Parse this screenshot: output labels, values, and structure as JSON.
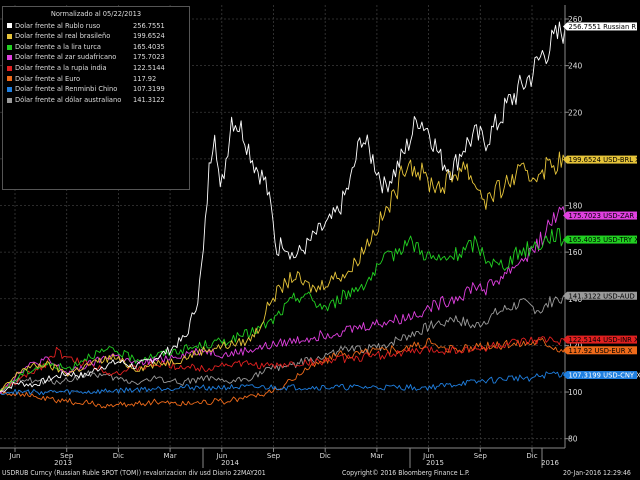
{
  "chart_data": {
    "type": "line",
    "title": "Normalizado al 05/22/2013",
    "y_axis_ticks": [
      80,
      100,
      120,
      140,
      160,
      180,
      200,
      220,
      240,
      260
    ],
    "ylim": [
      76,
      266
    ],
    "x_major_labels": [
      {
        "label": "Jun"
      },
      {
        "label": "Sep"
      },
      {
        "label": "Dic"
      },
      {
        "label": "Mar"
      },
      {
        "label": "Jun"
      },
      {
        "label": "Sep"
      },
      {
        "label": "Dic"
      },
      {
        "label": "Mar"
      },
      {
        "label": "Jun"
      },
      {
        "label": "Sep"
      },
      {
        "label": "Dic"
      }
    ],
    "x_year_labels": [
      "2013",
      "2014",
      "2015",
      "2016"
    ],
    "grid": true,
    "legend_placement": "top-left",
    "series": [
      {
        "name": "Dolar frente al Rublo ruso",
        "value_label": "256.7551",
        "tag": "256.7551 Russian R",
        "color": "#ffffff",
        "tag_bg": "#ffffff",
        "tag_fg": "#000000",
        "x": [
          0,
          3,
          6,
          9,
          12,
          15,
          18,
          21,
          24,
          27,
          30,
          33,
          34,
          35,
          36,
          37,
          38,
          39,
          40,
          41,
          43,
          45,
          47,
          48,
          49,
          50,
          52,
          54,
          56,
          58,
          60,
          62,
          64,
          66,
          68,
          70,
          72,
          74,
          76,
          78,
          80,
          82,
          84,
          86,
          88,
          90,
          92,
          94,
          96,
          98,
          100
        ],
        "y": [
          100,
          104,
          103,
          106,
          108,
          107,
          111,
          113,
          111,
          114,
          118,
          124,
          132,
          140,
          160,
          195,
          215,
          185,
          200,
          218,
          212,
          198,
          190,
          178,
          160,
          165,
          158,
          162,
          168,
          172,
          178,
          190,
          210,
          200,
          188,
          195,
          205,
          218,
          212,
          200,
          195,
          205,
          210,
          208,
          215,
          224,
          230,
          236,
          245,
          250,
          256.8
        ]
      },
      {
        "name": "Dolar frente al real brasileño",
        "value_label": "199.6524",
        "tag": "199.6524 USD-BRL X",
        "color": "#e6c43a",
        "tag_bg": "#e6c43a",
        "tag_fg": "#000000",
        "x": [
          0,
          4,
          8,
          12,
          16,
          20,
          24,
          28,
          32,
          36,
          40,
          44,
          46,
          48,
          50,
          52,
          54,
          56,
          58,
          60,
          62,
          64,
          66,
          68,
          70,
          72,
          74,
          76,
          78,
          80,
          82,
          84,
          86,
          88,
          90,
          92,
          94,
          96,
          98,
          100
        ],
        "y": [
          100,
          110,
          112,
          108,
          112,
          115,
          110,
          112,
          114,
          118,
          120,
          122,
          128,
          140,
          145,
          150,
          146,
          144,
          148,
          150,
          152,
          160,
          168,
          176,
          185,
          200,
          195,
          190,
          188,
          192,
          198,
          190,
          182,
          186,
          190,
          194,
          192,
          196,
          198,
          199.7
        ]
      },
      {
        "name": "Dolar frente a la lira turca",
        "value_label": "165.4035",
        "tag": "165.4035 USD-TRY X",
        "color": "#22d022",
        "tag_bg": "#22d022",
        "tag_fg": "#000000",
        "x": [
          0,
          4,
          8,
          12,
          16,
          20,
          24,
          28,
          32,
          36,
          40,
          44,
          48,
          50,
          52,
          54,
          56,
          58,
          60,
          62,
          64,
          66,
          68,
          70,
          72,
          74,
          76,
          78,
          80,
          82,
          84,
          86,
          88,
          90,
          92,
          94,
          96,
          98,
          100
        ],
        "y": [
          100,
          108,
          112,
          110,
          116,
          118,
          114,
          116,
          118,
          120,
          122,
          125,
          130,
          135,
          140,
          142,
          138,
          136,
          140,
          143,
          146,
          150,
          156,
          160,
          165,
          162,
          158,
          156,
          158,
          160,
          164,
          158,
          154,
          156,
          160,
          162,
          164,
          168,
          165.4
        ]
      },
      {
        "name": "Dolar frente al zar sudafricano",
        "value_label": "175.7023",
        "tag": "175.7023 USD-ZAR X",
        "color": "#e040e0",
        "tag_bg": "#e040e0",
        "tag_fg": "#000000",
        "x": [
          0,
          4,
          8,
          12,
          16,
          20,
          24,
          28,
          32,
          36,
          40,
          44,
          48,
          52,
          56,
          60,
          64,
          68,
          72,
          74,
          76,
          78,
          80,
          82,
          84,
          86,
          88,
          90,
          92,
          94,
          96,
          98,
          100
        ],
        "y": [
          100,
          110,
          114,
          108,
          112,
          116,
          112,
          114,
          116,
          118,
          116,
          118,
          120,
          122,
          124,
          126,
          128,
          130,
          132,
          134,
          136,
          138,
          140,
          142,
          146,
          144,
          148,
          152,
          156,
          160,
          166,
          175,
          175.7
        ]
      },
      {
        "name": "Dolar frente a la rupia india",
        "value_label": "122.5144",
        "tag": "122.5144 USD-INR X",
        "color": "#e02020",
        "tag_bg": "#e02020",
        "tag_fg": "#000000",
        "x": [
          0,
          4,
          8,
          10,
          12,
          16,
          20,
          24,
          28,
          32,
          36,
          40,
          44,
          48,
          52,
          56,
          60,
          64,
          68,
          72,
          76,
          80,
          84,
          88,
          92,
          96,
          100
        ],
        "y": [
          100,
          106,
          112,
          118,
          114,
          112,
          108,
          110,
          112,
          111,
          110,
          112,
          112,
          111,
          112,
          113,
          114,
          115,
          116,
          117,
          118,
          118,
          118,
          120,
          121,
          122,
          122.5
        ]
      },
      {
        "name": "Dolar frente al Euro",
        "value_label": "117.92",
        "tag": "117.92 USD-EUR X",
        "color": "#ee6a1a",
        "tag_bg": "#ee6a1a",
        "tag_fg": "#000000",
        "x": [
          0,
          4,
          8,
          12,
          16,
          20,
          24,
          28,
          32,
          36,
          40,
          44,
          48,
          50,
          52,
          54,
          56,
          58,
          60,
          62,
          64,
          66,
          68,
          70,
          72,
          74,
          76,
          78,
          80,
          84,
          88,
          92,
          96,
          100
        ],
        "y": [
          100,
          99,
          97,
          96,
          95,
          94,
          95,
          96,
          95,
          96,
          96,
          98,
          100,
          102,
          106,
          110,
          112,
          114,
          116,
          116,
          117,
          118,
          118,
          118,
          119,
          120,
          121,
          119,
          118,
          119,
          120,
          121,
          122,
          117.9
        ]
      },
      {
        "name": "Dolar frente al Renminbi Chino",
        "value_label": "107.3199",
        "tag": "107.3199 USD-CNY X",
        "color": "#1f7fe0",
        "tag_bg": "#1f7fe0",
        "tag_fg": "#ffffff",
        "x": [
          0,
          8,
          16,
          24,
          32,
          40,
          48,
          56,
          60,
          64,
          68,
          72,
          76,
          80,
          82,
          84,
          86,
          88,
          90,
          92,
          94,
          96,
          98,
          100
        ],
        "y": [
          100,
          100,
          100,
          101,
          102,
          102,
          102,
          102,
          102,
          102,
          102,
          102,
          102,
          103,
          104,
          104,
          105,
          105,
          106,
          106,
          106,
          107,
          108,
          107.3
        ]
      },
      {
        "name": "Dólar frente al dólar australiano",
        "value_label": "141.3122",
        "tag": "141.3122 USD-AUD X",
        "color": "#9a9a9a",
        "tag_bg": "#9a9a9a",
        "tag_fg": "#000000",
        "x": [
          0,
          4,
          8,
          12,
          16,
          20,
          24,
          28,
          32,
          36,
          40,
          44,
          48,
          52,
          56,
          60,
          64,
          68,
          72,
          76,
          80,
          84,
          88,
          92,
          96,
          98,
          100
        ],
        "y": [
          100,
          106,
          104,
          105,
          108,
          106,
          104,
          106,
          104,
          106,
          104,
          106,
          110,
          112,
          114,
          118,
          118,
          120,
          124,
          128,
          132,
          128,
          134,
          138,
          135,
          140,
          141.3
        ]
      }
    ]
  },
  "footer": {
    "left": "USDRUB Curncy (Russian Ruble SPOT (TOM)) revalorizacion div usd  Diario 22MAY201",
    "center": "Copyright© 2016 Bloomberg Finance L.P.",
    "right": "20-Jan-2016 12:29:46"
  }
}
